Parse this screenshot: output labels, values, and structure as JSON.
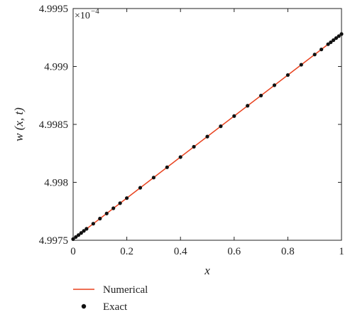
{
  "chart_data": {
    "type": "line",
    "xlabel": "x",
    "ylabel": "w (x, t)",
    "xlim": [
      0,
      1
    ],
    "ylim": [
      4.9975,
      4.9995
    ],
    "y_multiplier": "×10",
    "y_multiplier_exponent": "−4",
    "x_ticks": [
      {
        "value": 0,
        "label": "0"
      },
      {
        "value": 0.2,
        "label": "0.2"
      },
      {
        "value": 0.4,
        "label": "0.4"
      },
      {
        "value": 0.6,
        "label": "0.6"
      },
      {
        "value": 0.8,
        "label": "0.8"
      },
      {
        "value": 1,
        "label": "1"
      }
    ],
    "y_ticks": [
      {
        "value": 4.9975,
        "label": "4.9975"
      },
      {
        "value": 4.998,
        "label": "4.998"
      },
      {
        "value": 4.9985,
        "label": "4.9985"
      },
      {
        "value": 4.999,
        "label": "4.999"
      },
      {
        "value": 4.9995,
        "label": "4.9995"
      }
    ],
    "grid": false,
    "legend_position": "bottom-left-outside",
    "series": [
      {
        "name": "Numerical",
        "style": "line",
        "color": "#e8401c",
        "x": [
          0,
          1
        ],
        "y": [
          4.99751,
          4.99928
        ]
      },
      {
        "name": "Exact",
        "style": "markers",
        "color": "#111111",
        "x": [
          0,
          0.01,
          0.02,
          0.03,
          0.04,
          0.05,
          0.075,
          0.1,
          0.125,
          0.15,
          0.175,
          0.2,
          0.25,
          0.3,
          0.35,
          0.4,
          0.45,
          0.5,
          0.55,
          0.6,
          0.65,
          0.7,
          0.75,
          0.8,
          0.85,
          0.9,
          0.925,
          0.95,
          0.96,
          0.97,
          0.98,
          0.99,
          1
        ],
        "y": [
          4.99751,
          4.997528,
          4.997545,
          4.997563,
          4.997581,
          4.997599,
          4.997643,
          4.997687,
          4.997731,
          4.997776,
          4.99782,
          4.997864,
          4.997953,
          4.998041,
          4.99813,
          4.998218,
          4.998307,
          4.998395,
          4.998484,
          4.998572,
          4.998661,
          4.998749,
          4.998838,
          4.998926,
          4.999015,
          4.999103,
          4.999147,
          4.999192,
          4.999209,
          4.999227,
          4.999245,
          4.999262,
          4.99928
        ]
      }
    ]
  }
}
